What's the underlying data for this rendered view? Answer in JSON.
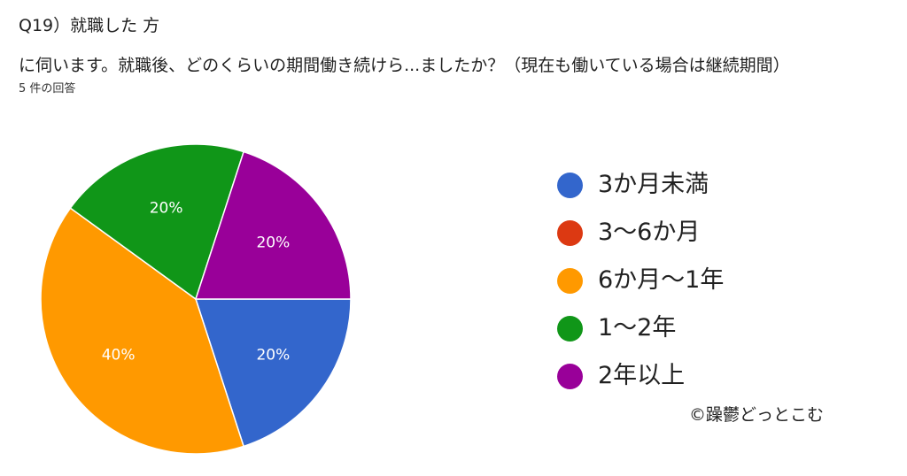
{
  "header": {
    "title_line1": "Q19）就職した 方",
    "title_line2": "に伺います。就職後、どのくらいの期間働き続けら...ましたか？（現在も働いている場合は継続期間）",
    "response_count": "5 件の回答"
  },
  "watermark": "©躁鬱どっとこむ",
  "chart_data": {
    "type": "pie",
    "title": "Q19）就職した 方 に伺います。就職後、どのくらいの期間働き続けら...ましたか？（現在も働いている場合は継続期間）",
    "subtitle": "5 件の回答",
    "categories": [
      "3か月未満",
      "3〜6か月",
      "6か月〜1年",
      "1〜2年",
      "2年以上"
    ],
    "values": [
      20,
      0,
      40,
      20,
      20
    ],
    "labels": [
      "20%",
      "0%",
      "40%",
      "20%",
      "20%"
    ],
    "colors": [
      "#3366cc",
      "#dc3912",
      "#ff9900",
      "#109618",
      "#990099"
    ],
    "legend_position": "right",
    "start": "3 o'clock",
    "direction": "clockwise"
  }
}
